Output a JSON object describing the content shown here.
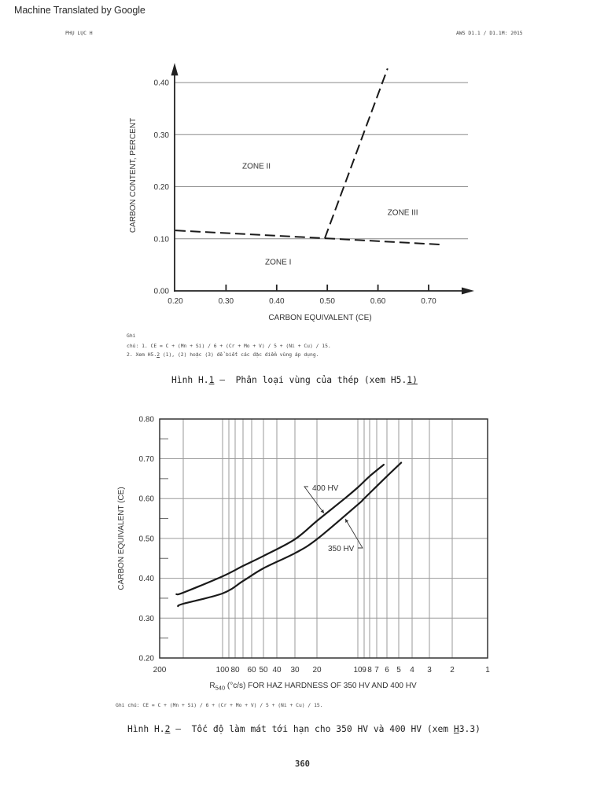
{
  "header": {
    "banner": "Machine Translated by Google",
    "section": "PHỤ LỤC H",
    "standard": "AWS D1.1 / D1.1M: 2015"
  },
  "figure1": {
    "notes": [
      "Ghi",
      "chú: 1. CE = C + (Mn + Si) / 6 + (Cr + Mo + V) / 5 + (Ni + Cu) / 15."
    ],
    "note2_parts": [
      "2. Xem H5.",
      "2",
      " (1), (2) hoặc (3) để biết các đặc điểm vùng áp dụng."
    ],
    "caption_parts": [
      "Hình H.",
      "1",
      " –  Phân loại vùng của thép (xem H5.",
      "1)"
    ]
  },
  "figure2": {
    "note": "Ghi chú: CE = C + (Mn + Si) / 6 + (Cr + Mo + V) / 5 + (Ni + Cu) / 15.",
    "x_axis_label_parts": [
      "R",
      "540",
      " (°c/s) FOR HAZ HARDNESS OF 350 HV AND 400 HV"
    ],
    "caption_parts": [
      "Hình H.",
      "2",
      " –  Tốc độ làm mát tới hạn cho 350 HV và 400 HV (xem ",
      "H",
      "3.3)"
    ]
  },
  "page_number": "360",
  "chart_data": [
    {
      "type": "line",
      "title": "Hình H.1 – Phân loại vùng của thép (xem H5.1)",
      "xlabel": "CARBON EQUIVALENT (CE)",
      "ylabel": "CARBON CONTENT, PERCENT",
      "xlim": [
        0.2,
        0.78
      ],
      "ylim": [
        0.0,
        0.44
      ],
      "x_tick_labels": [
        "0.20",
        "0.30",
        "0.40",
        "0.50",
        "0.60",
        "0.70"
      ],
      "y_tick_labels": [
        "0.00",
        "0.10",
        "0.20",
        "0.30",
        "0.40"
      ],
      "grid": {
        "x": [],
        "y": [
          0.1,
          0.2,
          0.3,
          0.4
        ]
      },
      "series": [
        {
          "name": "Zone I / Zone II boundary",
          "style": "dashed",
          "points": [
            [
              0.2,
              0.116
            ],
            [
              0.495,
              0.101
            ]
          ]
        },
        {
          "name": "Zone I / Zone III boundary",
          "style": "dashed",
          "points": [
            [
              0.495,
              0.101
            ],
            [
              0.723,
              0.089
            ]
          ]
        },
        {
          "name": "Zone II / Zone III boundary",
          "style": "dashed",
          "points": [
            [
              0.495,
              0.101
            ],
            [
              0.619,
              0.427
            ]
          ]
        }
      ],
      "annotations": [
        {
          "text": "ZONE I",
          "x": 0.403,
          "y": 0.056
        },
        {
          "text": "ZONE II",
          "x": 0.36,
          "y": 0.24
        },
        {
          "text": "ZONE III",
          "x": 0.649,
          "y": 0.151
        }
      ],
      "legend": null
    },
    {
      "type": "line",
      "title": "Hình H.2 – Tốc độ làm mát tới hạn cho 350 HV và 400 HV (xem H3.3)",
      "xlabel": "R540 (°c/s) FOR HAZ HARDNESS OF 350 HV AND 400 HV",
      "ylabel": "CARBON EQUIVALENT (CE)",
      "x_scale": "log (reversed)",
      "xlim": [
        200,
        1
      ],
      "ylim": [
        0.2,
        0.8
      ],
      "x_tick_labels": [
        "200",
        "100",
        "80",
        "60",
        "50",
        "40",
        "30",
        "20",
        "10",
        "9",
        "8",
        "7",
        "6",
        "5",
        "4",
        "3",
        "2",
        "1"
      ],
      "y_tick_labels": [
        "0.20",
        "0.30",
        "0.40",
        "0.50",
        "0.60",
        "0.70",
        "0.80"
      ],
      "grid": {
        "x": [
          150,
          100,
          90,
          80,
          70,
          60,
          50,
          40,
          30,
          20,
          10,
          9,
          8,
          7,
          6,
          5,
          4,
          3,
          2
        ],
        "y": [
          0.3,
          0.4,
          0.5,
          0.6,
          0.7
        ],
        "y_minor_ticks": [
          0.25,
          0.35,
          0.45,
          0.55,
          0.65,
          0.75
        ]
      },
      "series": [
        {
          "name": "400 HV",
          "points": [
            [
              163,
              0.36
            ],
            [
              150,
              0.364
            ],
            [
              100,
              0.405
            ],
            [
              70,
              0.431
            ],
            [
              50,
              0.456
            ],
            [
              30,
              0.498
            ],
            [
              20,
              0.544
            ],
            [
              12.5,
              0.6
            ],
            [
              10,
              0.628
            ],
            [
              8,
              0.656
            ],
            [
              6.3,
              0.685
            ]
          ]
        },
        {
          "name": "350 HV",
          "points": [
            [
              160,
              0.33
            ],
            [
              150,
              0.336
            ],
            [
              100,
              0.362
            ],
            [
              70,
              0.393
            ],
            [
              50,
              0.425
            ],
            [
              30,
              0.463
            ],
            [
              20,
              0.498
            ],
            [
              10,
              0.585
            ],
            [
              9,
              0.6
            ],
            [
              6,
              0.656
            ],
            [
              4.8,
              0.69
            ]
          ]
        }
      ],
      "annotations": [
        {
          "text": "400 HV",
          "target": "400 HV"
        },
        {
          "text": "350 HV",
          "target": "350 HV"
        }
      ],
      "legend": null
    }
  ]
}
